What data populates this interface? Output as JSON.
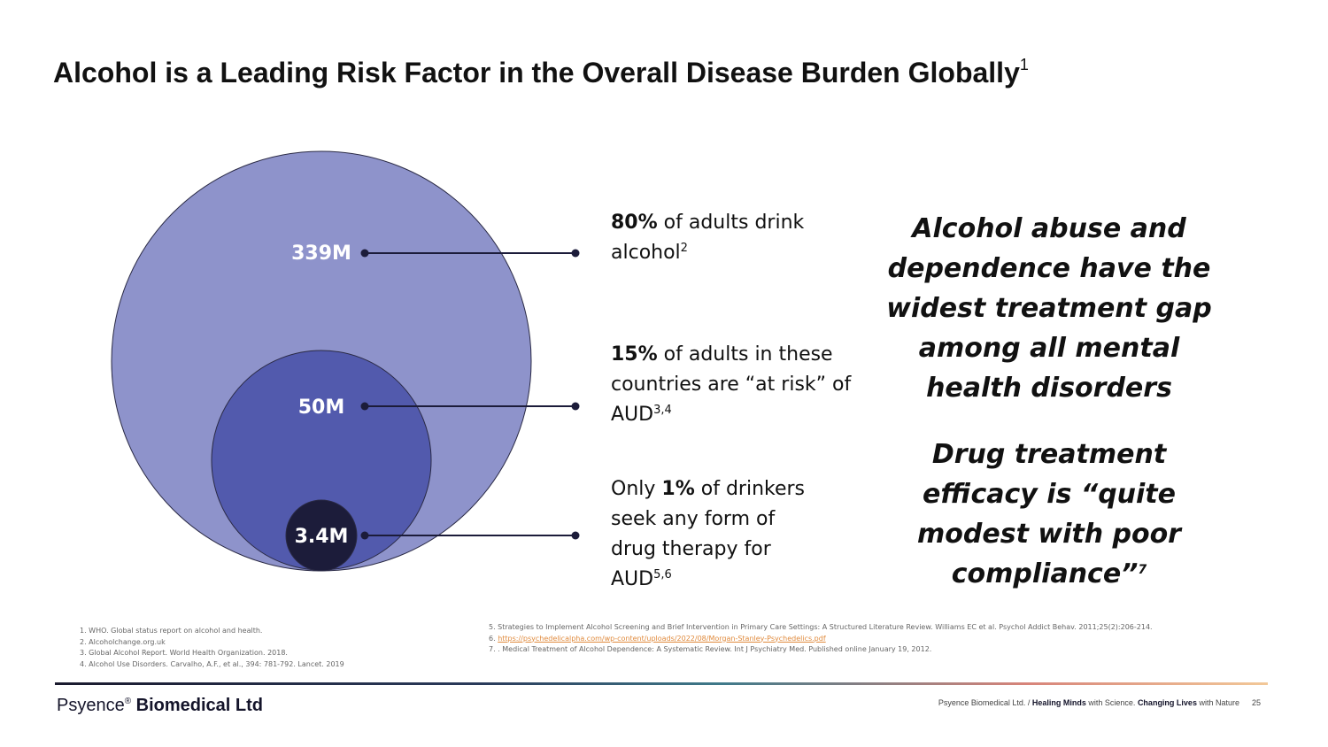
{
  "slide": {
    "title": "Alcohol is a Leading Risk Factor in the Overall Disease Burden Globally",
    "title_sup": "1",
    "colors": {
      "outer": "#8e93cb",
      "middle": "#525aad",
      "inner": "#1c1c3a",
      "line": "#1c1c3a"
    }
  },
  "circles": {
    "outer_label": "339M",
    "middle_label": "50M",
    "inner_label": "3.4M"
  },
  "stats": {
    "s1": {
      "bold": "80%",
      "text": " of adults drink alcohol",
      "sup": "2"
    },
    "s2": {
      "bold": "15%",
      "text": " of adults in these countries are “at risk” of AUD",
      "sup": "3,4"
    },
    "s3": {
      "pre": "Only ",
      "bold": "1%",
      "text": " of drinkers seek any form of drug therapy for AUD",
      "sup": "5,6"
    }
  },
  "quotes": {
    "q1": "Alcohol abuse and dependence have the widest treatment gap among all mental health disorders",
    "q2": "Drug treatment efficacy is “quite modest with poor compliance”",
    "q2_sup": "7"
  },
  "references": {
    "left": [
      "1. WHO. Global status report on alcohol and health.",
      "2. Alcoholchange.org.uk",
      "3. Global Alcohol Report. World Health Organization. 2018.",
      "4. Alcohol Use Disorders. Carvalho, A.F., et al., 394: 781-792. Lancet. 2019"
    ],
    "right_5": "5. Strategies to Implement Alcohol Screening and Brief Intervention in Primary Care Settings: A Structured Literature Review. Williams EC et al. Psychol Addict Behav. 2011;25(2):206-214.",
    "right_6_prefix": "6. ",
    "right_6_link": "https://psychedelicalpha.com/wp-content/uploads/2022/08/Morgan-Stanley-Psychedelics.pdf",
    "right_7": "7. . Medical Treatment of Alcohol Dependence: A Systematic Review. Int J Psychiatry Med. Published online January 19, 2012."
  },
  "footer": {
    "logo_a": "Psyence",
    "logo_tm": "®",
    "logo_b": " Biomedical Ltd",
    "company": "Psyence Biomedical Ltd. / ",
    "healing": "Healing Minds",
    "with_science": " with Science. ",
    "changing": "Changing Lives",
    "with_nature": " with Nature",
    "page": "25"
  }
}
